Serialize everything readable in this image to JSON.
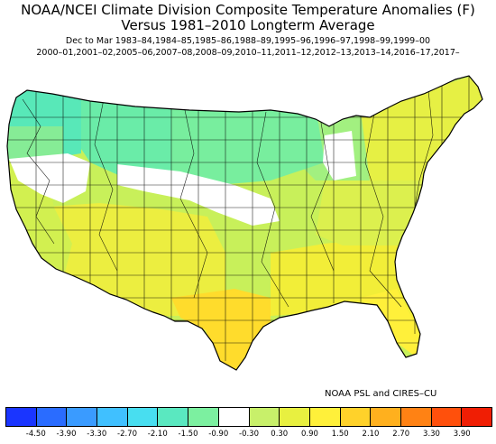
{
  "title_line1": "NOAA/NCEI Climate Division Composite Temperature Anomalies (F)",
  "title_line2": "Versus 1981–2010 Longterm Average",
  "subtitle_line1": "Dec to Mar   1983–84,1984–85,1985–86,1988–89,1995–96,1996–97,1998–99,1999–00",
  "subtitle_line2": "2000–01,2001–02,2005–06,2007–08,2008–09,2010–11,2011–12,2012–13,2013–14,2016–17,2017–",
  "credit": "NOAA PSL and CIRES–CU",
  "legend": {
    "colors": [
      "#1a35ff",
      "#2a6cff",
      "#3a9bff",
      "#40c0ff",
      "#48def0",
      "#5ae8c0",
      "#7cf0a0",
      "#ffffff",
      "#c8f06a",
      "#e8f040",
      "#fff03a",
      "#ffd22a",
      "#ffb01e",
      "#ff8214",
      "#ff500c",
      "#f01e04"
    ],
    "ticks": [
      "-4.50",
      "-3.90",
      "-3.30",
      "-2.70",
      "-2.10",
      "-1.50",
      "-0.90",
      "-0.30",
      "0.30",
      "0.90",
      "1.50",
      "2.10",
      "2.70",
      "3.30",
      "3.90"
    ]
  },
  "region_colors": {
    "nw": "#58e8b8",
    "northrockies": "#6aeca8",
    "northplains": "#78ee9e",
    "greatbasin_white": "#ffffff",
    "corridor_white": "#ffffff",
    "mw_white": "#ffffff",
    "northeast": "#e6f044",
    "midatlantic": "#dcf04e",
    "southeast": "#f2ee38",
    "florida": "#fff03a",
    "texas": "#ffdc2c",
    "southwest": "#ecee40",
    "california": "#d2f050",
    "centralplains": "#c8f05a",
    "greatlakes_green": "#a2f080",
    "oregon_light": "#86ec96"
  }
}
